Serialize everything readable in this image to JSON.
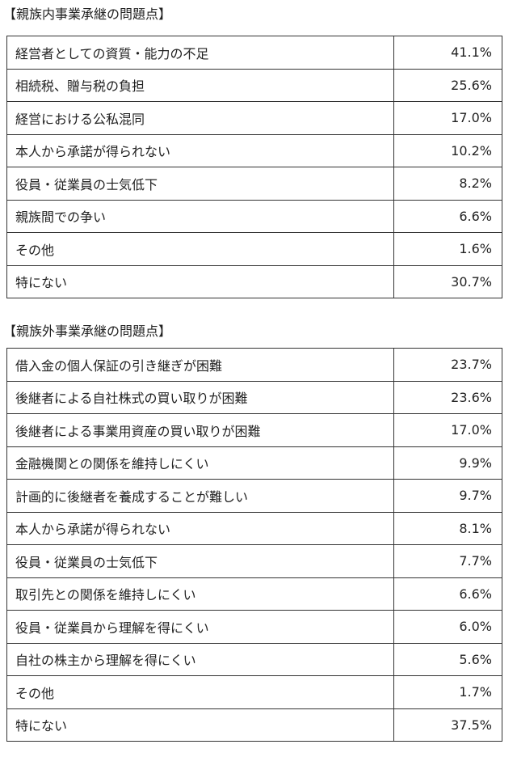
{
  "sections": [
    {
      "title": "【親族内事業承継の問題点】",
      "table": {
        "rows": [
          [
            "経営者としての資質・能力の不足",
            "41.1%"
          ],
          [
            "相続税、贈与税の負担",
            "25.6%"
          ],
          [
            "経営における公私混同",
            "17.0%"
          ],
          [
            "本人から承諾が得られない",
            "10.2%"
          ],
          [
            "役員・従業員の士気低下",
            "8.2%"
          ],
          [
            "親族間での争い",
            "6.6%"
          ],
          [
            "その他",
            "1.6%"
          ],
          [
            "特にない",
            "30.7%"
          ]
        ]
      }
    },
    {
      "title": "【親族外事業承継の問題点】",
      "table": {
        "rows": [
          [
            "借入金の個人保証の引き継ぎが困難",
            "23.7%"
          ],
          [
            "後継者による自社株式の買い取りが困難",
            "23.6%"
          ],
          [
            "後継者による事業用資産の買い取りが困難",
            "17.0%"
          ],
          [
            "金融機関との関係を維持しにくい",
            "9.9%"
          ],
          [
            "計画的に後継者を養成することが難しい",
            "9.7%"
          ],
          [
            "本人から承諾が得られない",
            "8.1%"
          ],
          [
            "役員・従業員の士気低下",
            "7.7%"
          ],
          [
            "取引先との関係を維持しにくい",
            "6.6%"
          ],
          [
            "役員・従業員から理解を得にくい",
            "6.0%"
          ],
          [
            "自社の株主から理解を得にくい",
            "5.6%"
          ],
          [
            "その他",
            "1.7%"
          ],
          [
            "特にない",
            "37.5%"
          ]
        ]
      }
    }
  ]
}
